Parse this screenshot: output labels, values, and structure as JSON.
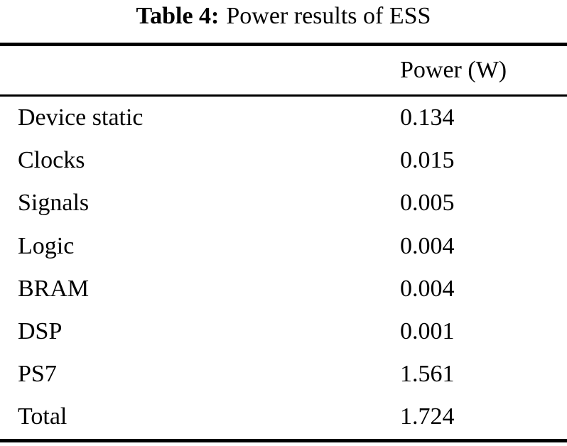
{
  "caption": {
    "label": "Table 4:",
    "text": "Power results of ESS"
  },
  "table": {
    "value_header": "Power (W)",
    "rows": [
      {
        "label": "Device static",
        "value": "0.134"
      },
      {
        "label": "Clocks",
        "value": "0.015"
      },
      {
        "label": "Signals",
        "value": "0.005"
      },
      {
        "label": "Logic",
        "value": "0.004"
      },
      {
        "label": "BRAM",
        "value": "0.004"
      },
      {
        "label": "DSP",
        "value": "0.001"
      },
      {
        "label": "PS7",
        "value": "1.561"
      },
      {
        "label": "Total",
        "value": "1.724"
      }
    ]
  },
  "colors": {
    "text": "#000000",
    "background": "#ffffff",
    "rule": "#000000"
  }
}
